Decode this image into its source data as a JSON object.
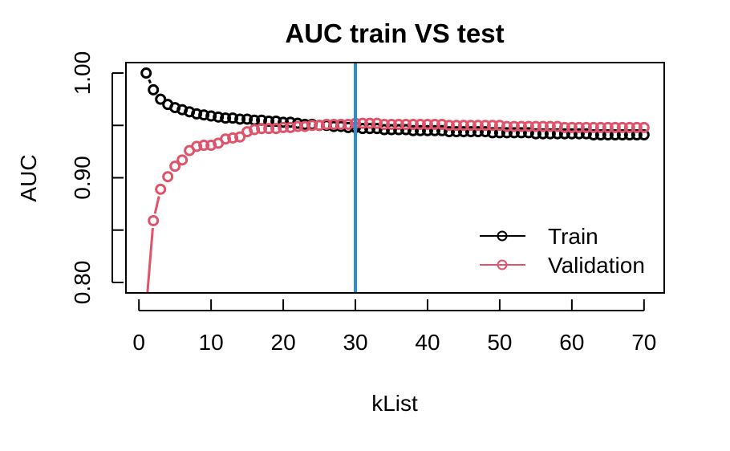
{
  "chart_data": {
    "type": "scatter",
    "title": "AUC train VS test",
    "xlabel": "kList",
    "ylabel": "AUC",
    "xlim": [
      -1.8,
      72.8
    ],
    "ylim": [
      0.79,
      1.01
    ],
    "xticks": [
      0,
      10,
      20,
      30,
      40,
      50,
      60,
      70
    ],
    "xtick_labels": [
      "0",
      "10",
      "20",
      "30",
      "40",
      "50",
      "60",
      "70"
    ],
    "yticks": [
      0.8,
      0.85,
      0.9,
      0.95,
      1.0
    ],
    "ytick_labels": [
      "0.80",
      "",
      "0.90",
      "",
      "1.00"
    ],
    "grid": false,
    "legend_position": "bottom-right",
    "vline": {
      "x": 30,
      "color": "#2a8fd0"
    },
    "series": [
      {
        "name": "Train",
        "color": "#000000",
        "x": [
          1,
          2,
          3,
          4,
          5,
          6,
          7,
          8,
          9,
          10,
          11,
          12,
          13,
          14,
          15,
          16,
          17,
          18,
          19,
          20,
          21,
          22,
          23,
          24,
          25,
          26,
          27,
          28,
          29,
          30,
          31,
          32,
          33,
          34,
          35,
          36,
          37,
          38,
          39,
          40,
          41,
          42,
          43,
          44,
          45,
          46,
          47,
          48,
          49,
          50,
          51,
          52,
          53,
          54,
          55,
          56,
          57,
          58,
          59,
          60,
          61,
          62,
          63,
          64,
          65,
          66,
          67,
          68,
          69,
          70
        ],
        "y": [
          1.0,
          0.984,
          0.975,
          0.97,
          0.967,
          0.965,
          0.963,
          0.961,
          0.96,
          0.959,
          0.958,
          0.957,
          0.957,
          0.956,
          0.956,
          0.955,
          0.955,
          0.954,
          0.954,
          0.953,
          0.953,
          0.952,
          0.951,
          0.951,
          0.95,
          0.95,
          0.949,
          0.949,
          0.948,
          0.948,
          0.947,
          0.947,
          0.947,
          0.946,
          0.946,
          0.946,
          0.946,
          0.945,
          0.945,
          0.945,
          0.945,
          0.945,
          0.944,
          0.944,
          0.944,
          0.944,
          0.944,
          0.944,
          0.943,
          0.943,
          0.943,
          0.943,
          0.943,
          0.943,
          0.942,
          0.942,
          0.942,
          0.942,
          0.942,
          0.942,
          0.942,
          0.942,
          0.941,
          0.941,
          0.941,
          0.941,
          0.941,
          0.941,
          0.941,
          0.941
        ]
      },
      {
        "name": "Validation",
        "color": "#df536b",
        "x": [
          1,
          2,
          3,
          4,
          5,
          6,
          7,
          8,
          9,
          10,
          11,
          12,
          13,
          14,
          15,
          16,
          17,
          18,
          19,
          20,
          21,
          22,
          23,
          24,
          25,
          26,
          27,
          28,
          29,
          30,
          31,
          32,
          33,
          34,
          35,
          36,
          37,
          38,
          39,
          40,
          41,
          42,
          43,
          44,
          45,
          46,
          47,
          48,
          49,
          50,
          51,
          52,
          53,
          54,
          55,
          56,
          57,
          58,
          59,
          60,
          61,
          62,
          63,
          64,
          65,
          66,
          67,
          68,
          69,
          70
        ],
        "y": [
          0.775,
          0.859,
          0.889,
          0.901,
          0.911,
          0.917,
          0.926,
          0.93,
          0.931,
          0.931,
          0.933,
          0.937,
          0.938,
          0.939,
          0.944,
          0.946,
          0.947,
          0.947,
          0.947,
          0.948,
          0.948,
          0.949,
          0.949,
          0.95,
          0.95,
          0.951,
          0.951,
          0.951,
          0.951,
          0.952,
          0.952,
          0.952,
          0.952,
          0.951,
          0.951,
          0.951,
          0.951,
          0.951,
          0.951,
          0.951,
          0.951,
          0.951,
          0.95,
          0.95,
          0.95,
          0.95,
          0.95,
          0.95,
          0.95,
          0.95,
          0.949,
          0.949,
          0.949,
          0.949,
          0.949,
          0.949,
          0.949,
          0.949,
          0.948,
          0.948,
          0.948,
          0.948,
          0.948,
          0.948,
          0.948,
          0.948,
          0.948,
          0.948,
          0.948,
          0.948
        ]
      }
    ]
  }
}
